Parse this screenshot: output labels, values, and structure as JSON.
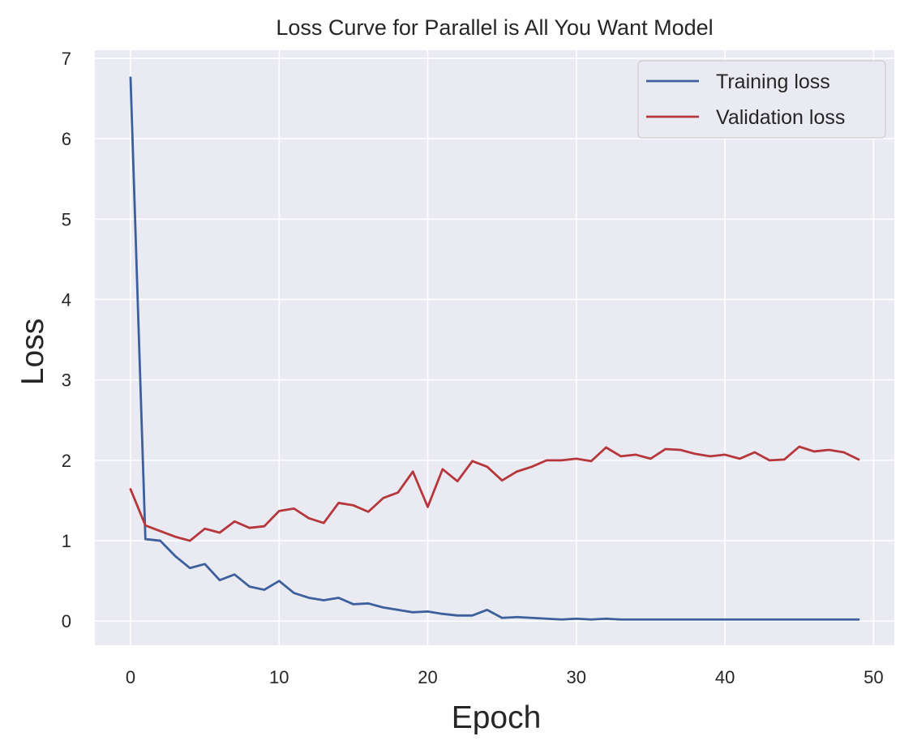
{
  "chart_data": {
    "type": "line",
    "title": "Loss Curve for Parallel is All You Want Model",
    "xlabel": "Epoch",
    "ylabel": "Loss",
    "xlim": [
      -2.4,
      51.4
    ],
    "ylim": [
      -0.3,
      7.1
    ],
    "xticks": [
      0,
      10,
      20,
      30,
      40,
      50
    ],
    "yticks": [
      0,
      1,
      2,
      3,
      4,
      5,
      6,
      7
    ],
    "grid": true,
    "legend_position": "top-right",
    "x": [
      0,
      1,
      2,
      3,
      4,
      5,
      6,
      7,
      8,
      9,
      10,
      11,
      12,
      13,
      14,
      15,
      16,
      17,
      18,
      19,
      20,
      21,
      22,
      23,
      24,
      25,
      26,
      27,
      28,
      29,
      30,
      31,
      32,
      33,
      34,
      35,
      36,
      37,
      38,
      39,
      40,
      41,
      42,
      43,
      44,
      45,
      46,
      47,
      48,
      49
    ],
    "series": [
      {
        "name": "Training loss",
        "color": "#3d5f9c",
        "values": [
          6.76,
          1.02,
          1.0,
          0.81,
          0.66,
          0.71,
          0.51,
          0.58,
          0.43,
          0.39,
          0.5,
          0.35,
          0.29,
          0.26,
          0.29,
          0.21,
          0.22,
          0.17,
          0.14,
          0.11,
          0.12,
          0.09,
          0.07,
          0.07,
          0.14,
          0.04,
          0.05,
          0.04,
          0.03,
          0.02,
          0.03,
          0.02,
          0.03,
          0.02,
          0.02,
          0.02,
          0.02,
          0.02,
          0.02,
          0.02,
          0.02,
          0.02,
          0.02,
          0.02,
          0.02,
          0.02,
          0.02,
          0.02,
          0.02,
          0.02
        ]
      },
      {
        "name": "Validation loss",
        "color": "#b5373c",
        "values": [
          1.64,
          1.19,
          1.12,
          1.05,
          1.0,
          1.15,
          1.1,
          1.24,
          1.16,
          1.18,
          1.37,
          1.4,
          1.28,
          1.22,
          1.47,
          1.44,
          1.36,
          1.53,
          1.6,
          1.86,
          1.42,
          1.89,
          1.74,
          1.99,
          1.92,
          1.75,
          1.86,
          1.92,
          2.0,
          2.0,
          2.02,
          1.99,
          2.16,
          2.05,
          2.07,
          2.02,
          2.14,
          2.13,
          2.08,
          2.05,
          2.07,
          2.02,
          2.1,
          2.0,
          2.01,
          2.17,
          2.11,
          2.13,
          2.1,
          2.01
        ]
      }
    ]
  }
}
